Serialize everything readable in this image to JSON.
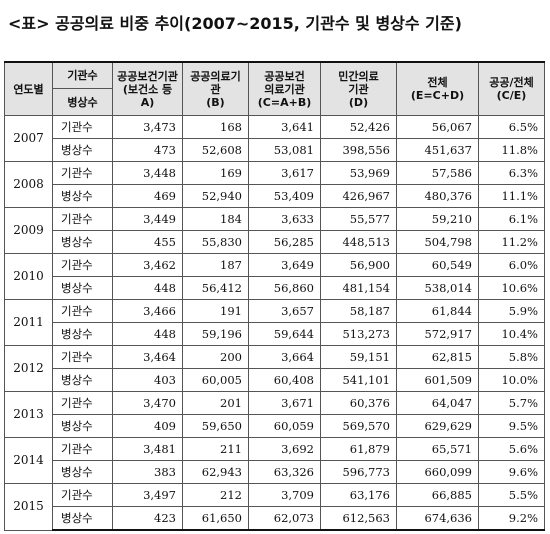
{
  "title": "<표> 공공의료 비중 추이(2007~2015, 기관수 및 병상수 기준)",
  "headers": {
    "year": "연도별",
    "kind_top": "기관수",
    "kind_bottom": "병상수",
    "cols": [
      {
        "line1": "공공보건기관",
        "line2": "(보건소 등 A)"
      },
      {
        "line1": "공공의료기관",
        "line2": "(B)"
      },
      {
        "line1": "공공보건",
        "line2": "의료기관",
        "line3": "(C=A+B)"
      },
      {
        "line1": "민간의료",
        "line2": "기관",
        "line3": "(D)"
      },
      {
        "line1": "전체",
        "line2": "(E=C+D)"
      },
      {
        "line1": "공공/전체",
        "line2": "(C/E)"
      }
    ]
  },
  "rows": [
    {
      "year": "2007",
      "inst": {
        "label": "기관수",
        "v": [
          "3,473",
          "168",
          "3,641",
          "52,426",
          "56,067",
          "6.5%"
        ]
      },
      "beds": {
        "label": "병상수",
        "v": [
          "473",
          "52,608",
          "53,081",
          "398,556",
          "451,637",
          "11.8%"
        ]
      }
    },
    {
      "year": "2008",
      "inst": {
        "label": "기관수",
        "v": [
          "3,448",
          "169",
          "3,617",
          "53,969",
          "57,586",
          "6.3%"
        ]
      },
      "beds": {
        "label": "병상수",
        "v": [
          "469",
          "52,940",
          "53,409",
          "426,967",
          "480,376",
          "11.1%"
        ]
      }
    },
    {
      "year": "2009",
      "inst": {
        "label": "기관수",
        "v": [
          "3,449",
          "184",
          "3,633",
          "55,577",
          "59,210",
          "6.1%"
        ]
      },
      "beds": {
        "label": "병상수",
        "v": [
          "455",
          "55,830",
          "56,285",
          "448,513",
          "504,798",
          "11.2%"
        ]
      }
    },
    {
      "year": "2010",
      "inst": {
        "label": "기관수",
        "v": [
          "3,462",
          "187",
          "3,649",
          "56,900",
          "60,549",
          "6.0%"
        ]
      },
      "beds": {
        "label": "병상수",
        "v": [
          "448",
          "56,412",
          "56,860",
          "481,154",
          "538,014",
          "10.6%"
        ]
      }
    },
    {
      "year": "2011",
      "inst": {
        "label": "기관수",
        "v": [
          "3,466",
          "191",
          "3,657",
          "58,187",
          "61,844",
          "5.9%"
        ]
      },
      "beds": {
        "label": "병상수",
        "v": [
          "448",
          "59,196",
          "59,644",
          "513,273",
          "572,917",
          "10.4%"
        ]
      }
    },
    {
      "year": "2012",
      "inst": {
        "label": "기관수",
        "v": [
          "3,464",
          "200",
          "3,664",
          "59,151",
          "62,815",
          "5.8%"
        ]
      },
      "beds": {
        "label": "병상수",
        "v": [
          "403",
          "60,005",
          "60,408",
          "541,101",
          "601,509",
          "10.0%"
        ]
      }
    },
    {
      "year": "2013",
      "inst": {
        "label": "기관수",
        "v": [
          "3,470",
          "201",
          "3,671",
          "60,376",
          "64,047",
          "5.7%"
        ]
      },
      "beds": {
        "label": "병상수",
        "v": [
          "409",
          "59,650",
          "60,059",
          "569,570",
          "629,629",
          "9.5%"
        ]
      }
    },
    {
      "year": "2014",
      "inst": {
        "label": "기관수",
        "v": [
          "3,481",
          "211",
          "3,692",
          "61,879",
          "65,571",
          "5.6%"
        ]
      },
      "beds": {
        "label": "병상수",
        "v": [
          "383",
          "62,943",
          "63,326",
          "596,773",
          "660,099",
          "9.6%"
        ]
      }
    },
    {
      "year": "2015",
      "inst": {
        "label": "기관수",
        "v": [
          "3,497",
          "212",
          "3,709",
          "63,176",
          "66,885",
          "5.5%"
        ]
      },
      "beds": {
        "label": "병상수",
        "v": [
          "423",
          "61,650",
          "62,073",
          "612,563",
          "674,636",
          "9.2%"
        ]
      }
    }
  ]
}
